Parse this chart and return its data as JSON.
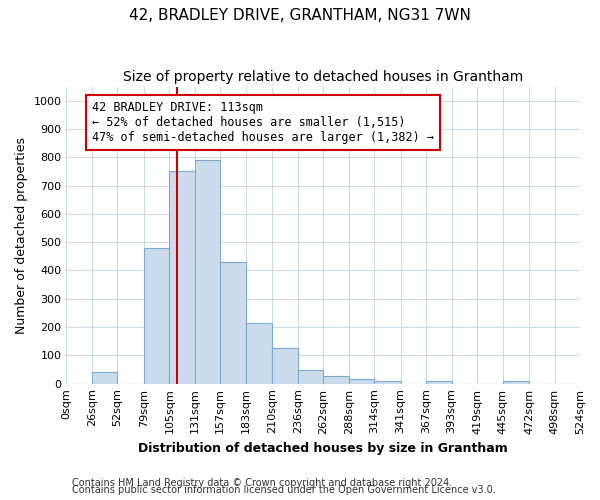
{
  "title": "42, BRADLEY DRIVE, GRANTHAM, NG31 7WN",
  "subtitle": "Size of property relative to detached houses in Grantham",
  "xlabel": "Distribution of detached houses by size in Grantham",
  "ylabel": "Number of detached properties",
  "footer_line1": "Contains HM Land Registry data © Crown copyright and database right 2024.",
  "footer_line2": "Contains public sector information licensed under the Open Government Licence v3.0.",
  "bin_edges": [
    0,
    26,
    52,
    79,
    105,
    131,
    157,
    183,
    210,
    236,
    262,
    288,
    314,
    341,
    367,
    393,
    419,
    445,
    472,
    498,
    524
  ],
  "bar_heights": [
    0,
    40,
    0,
    480,
    750,
    790,
    430,
    215,
    125,
    50,
    28,
    15,
    10,
    0,
    8,
    0,
    0,
    8,
    0,
    0
  ],
  "bar_color": "#ccdcec",
  "bar_edge_color": "#7aaad0",
  "vline_x": 113,
  "vline_color": "#cc0000",
  "annotation_text": "42 BRADLEY DRIVE: 113sqm\n← 52% of detached houses are smaller (1,515)\n47% of semi-detached houses are larger (1,382) →",
  "annotation_box_color": "#ffffff",
  "annotation_box_edge": "#cc0000",
  "ylim": [
    0,
    1050
  ],
  "yticks": [
    0,
    100,
    200,
    300,
    400,
    500,
    600,
    700,
    800,
    900,
    1000
  ],
  "xtick_labels": [
    "0sqm",
    "26sqm",
    "52sqm",
    "79sqm",
    "105sqm",
    "131sqm",
    "157sqm",
    "183sqm",
    "210sqm",
    "236sqm",
    "262sqm",
    "288sqm",
    "314sqm",
    "341sqm",
    "367sqm",
    "393sqm",
    "419sqm",
    "445sqm",
    "472sqm",
    "498sqm",
    "524sqm"
  ],
  "background_color": "#ffffff",
  "grid_color": "#c8d8e8",
  "title_fontsize": 11,
  "subtitle_fontsize": 10,
  "axis_label_fontsize": 9,
  "tick_fontsize": 8,
  "annotation_fontsize": 8.5,
  "footer_fontsize": 7
}
